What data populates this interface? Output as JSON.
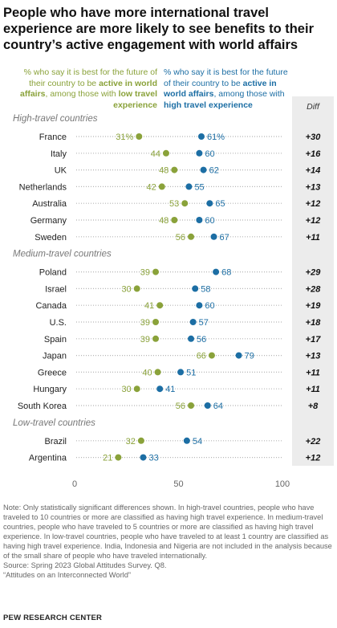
{
  "title": "People who have more international travel experience are more likely to see benefits to their country’s active engagement with world affairs",
  "legend": {
    "low_prefix": "% who say it is best for the future of their country to be ",
    "low_bold": "active in world affairs",
    "low_mid": ", among those with ",
    "low_bold2": "low travel experience",
    "high_prefix": "% who say it is best for the future of their country to be ",
    "high_bold": "active in world affairs",
    "high_mid": ", among those with ",
    "high_bold2": "high travel experience"
  },
  "chart_data": {
    "type": "dot",
    "diff_header": "Diff",
    "xlim": [
      0,
      100
    ],
    "xticks": [
      "0",
      "50",
      "100"
    ],
    "colors": {
      "low": "#8aa23a",
      "high": "#1c6ea4",
      "dots": "#b5b5b5",
      "diff_bg": "#ececec"
    },
    "groups": [
      {
        "label": "High-travel countries",
        "rows": [
          {
            "country": "France",
            "low": 31,
            "high": 61,
            "low_label": "31%",
            "high_label": "61%",
            "diff": "+30"
          },
          {
            "country": "Italy",
            "low": 44,
            "high": 60,
            "low_label": "44",
            "high_label": "60",
            "diff": "+16"
          },
          {
            "country": "UK",
            "low": 48,
            "high": 62,
            "low_label": "48",
            "high_label": "62",
            "diff": "+14"
          },
          {
            "country": "Netherlands",
            "low": 42,
            "high": 55,
            "low_label": "42",
            "high_label": "55",
            "diff": "+13"
          },
          {
            "country": "Australia",
            "low": 53,
            "high": 65,
            "low_label": "53",
            "high_label": "65",
            "diff": "+12"
          },
          {
            "country": "Germany",
            "low": 48,
            "high": 60,
            "low_label": "48",
            "high_label": "60",
            "diff": "+12"
          },
          {
            "country": "Sweden",
            "low": 56,
            "high": 67,
            "low_label": "56",
            "high_label": "67",
            "diff": "+11"
          }
        ]
      },
      {
        "label": "Medium-travel countries",
        "rows": [
          {
            "country": "Poland",
            "low": 39,
            "high": 68,
            "low_label": "39",
            "high_label": "68",
            "diff": "+29"
          },
          {
            "country": "Israel",
            "low": 30,
            "high": 58,
            "low_label": "30",
            "high_label": "58",
            "diff": "+28"
          },
          {
            "country": "Canada",
            "low": 41,
            "high": 60,
            "low_label": "41",
            "high_label": "60",
            "diff": "+19"
          },
          {
            "country": "U.S.",
            "low": 39,
            "high": 57,
            "low_label": "39",
            "high_label": "57",
            "diff": "+18"
          },
          {
            "country": "Spain",
            "low": 39,
            "high": 56,
            "low_label": "39",
            "high_label": "56",
            "diff": "+17"
          },
          {
            "country": "Japan",
            "low": 66,
            "high": 79,
            "low_label": "66",
            "high_label": "79",
            "diff": "+13"
          },
          {
            "country": "Greece",
            "low": 40,
            "high": 51,
            "low_label": "40",
            "high_label": "51",
            "diff": "+11"
          },
          {
            "country": "Hungary",
            "low": 30,
            "high": 41,
            "low_label": "30",
            "high_label": "41",
            "diff": "+11"
          },
          {
            "country": "South Korea",
            "low": 56,
            "high": 64,
            "low_label": "56",
            "high_label": "64",
            "diff": "+8"
          }
        ]
      },
      {
        "label": "Low-travel countries",
        "rows": [
          {
            "country": "Brazil",
            "low": 32,
            "high": 54,
            "low_label": "32",
            "high_label": "54",
            "diff": "+22"
          },
          {
            "country": "Argentina",
            "low": 21,
            "high": 33,
            "low_label": "21",
            "high_label": "33",
            "diff": "+12"
          }
        ]
      }
    ]
  },
  "notes": [
    "Note: Only statistically significant differences shown. In high-travel countries, people who have traveled to 10 countries or more are classified as having high travel experience. In medium-travel countries, people who have traveled to 5 countries or more are classified as having high travel experience. In low-travel countries, people who have traveled to at least 1 country are classified as having high travel experience. India, Indonesia and Nigeria are not included in the analysis because of the small share of people who have traveled internationally.",
    "Source: Spring 2023 Global Attitudes Survey. Q8.",
    "“Attitudes on an Interconnected World”"
  ],
  "brand": "PEW RESEARCH CENTER"
}
